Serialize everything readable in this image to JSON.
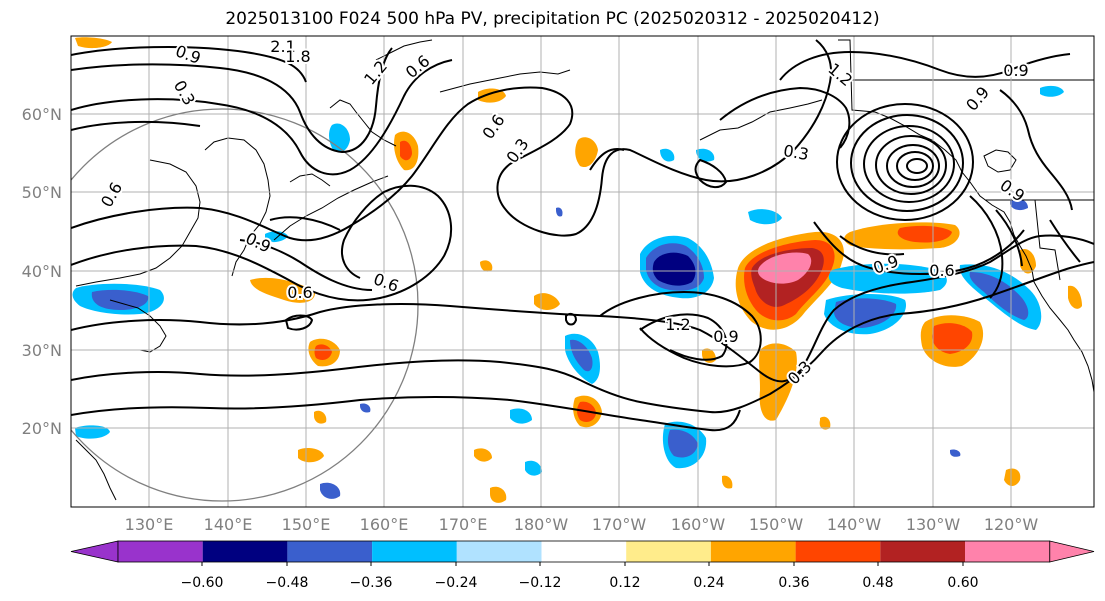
{
  "title": "2025013100 F024 500 hPa PV, precipitation PC (2025020312 - 2025020412)",
  "lat_labels": [
    "60°N",
    "50°N",
    "40°N",
    "30°N",
    "20°N"
  ],
  "lon_labels": [
    "130°E",
    "140°E",
    "150°E",
    "160°E",
    "170°E",
    "180°W",
    "170°W",
    "160°W",
    "150°W",
    "140°W",
    "130°W",
    "120°W"
  ],
  "contour_labels": [
    "2.1",
    "1.8",
    "0.9",
    "0.3",
    "1.2",
    "0.6",
    "0.6",
    "0.3",
    "0.3",
    "1.2",
    "0.9",
    "0.9",
    "0.9",
    "0.9",
    "0.6",
    "0.6",
    "1.2",
    "0.9",
    "0.3",
    "0.9",
    "0.6",
    "0.6"
  ],
  "colorbar": {
    "ticks": [
      "−0.60",
      "−0.48",
      "−0.36",
      "−0.24",
      "−0.12",
      "0.12",
      "0.24",
      "0.36",
      "0.48",
      "0.60"
    ],
    "colors": [
      "#9933cc",
      "#000080",
      "#3a5fcd",
      "#00bfff",
      "#b0e2ff",
      "#ffffff",
      "#ffec8b",
      "#ffa500",
      "#ff4500",
      "#b22222",
      "#ff82ab"
    ]
  }
}
